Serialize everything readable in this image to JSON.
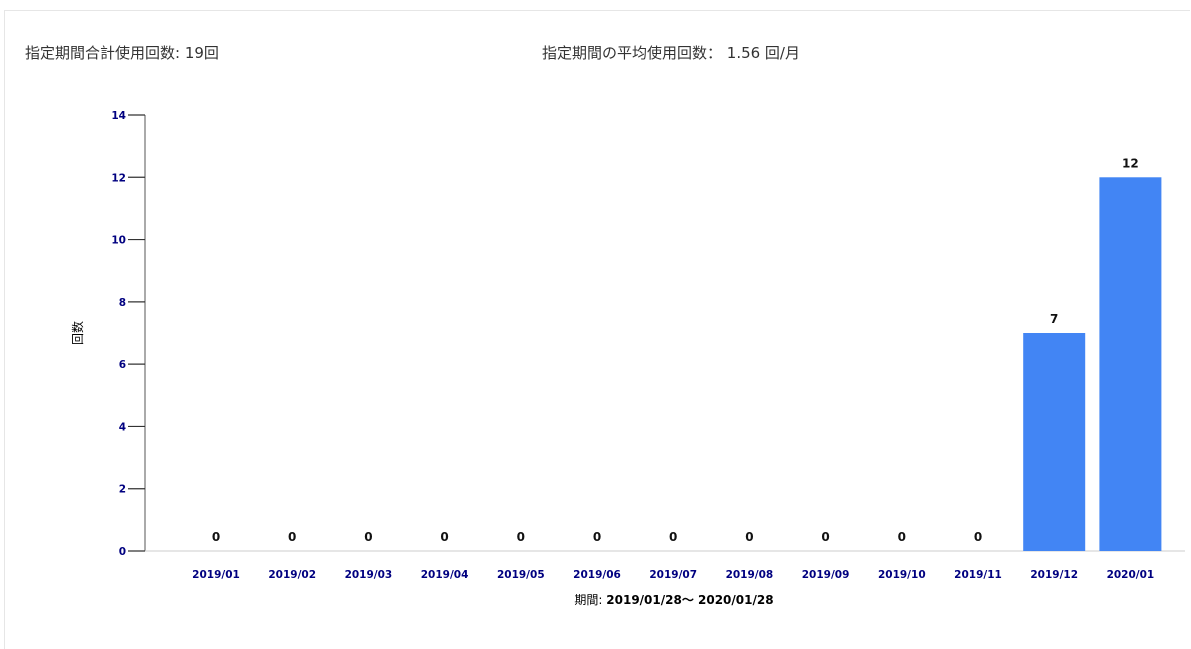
{
  "summary": {
    "total_label": "指定期間合計使用回数: 19回",
    "average_label": "指定期間の平均使用回数： 1.56 回/月"
  },
  "colors": {
    "bar": "#4285f4",
    "tick_label": "#000080",
    "axis": "#555555"
  },
  "chart_data": {
    "type": "bar",
    "categories": [
      "2019/01",
      "2019/02",
      "2019/03",
      "2019/04",
      "2019/05",
      "2019/06",
      "2019/07",
      "2019/08",
      "2019/09",
      "2019/10",
      "2019/11",
      "2019/12",
      "2020/01"
    ],
    "values": [
      0,
      0,
      0,
      0,
      0,
      0,
      0,
      0,
      0,
      0,
      0,
      7,
      12
    ],
    "xlabel_prefix": "期間: ",
    "xlabel_range": "2019/01/28～ 2020/01/28",
    "ylabel": "回数",
    "ylim": [
      0,
      14
    ],
    "yticks": [
      0,
      2,
      4,
      6,
      8,
      10,
      12,
      14
    ],
    "grid": false,
    "legend": "none"
  }
}
